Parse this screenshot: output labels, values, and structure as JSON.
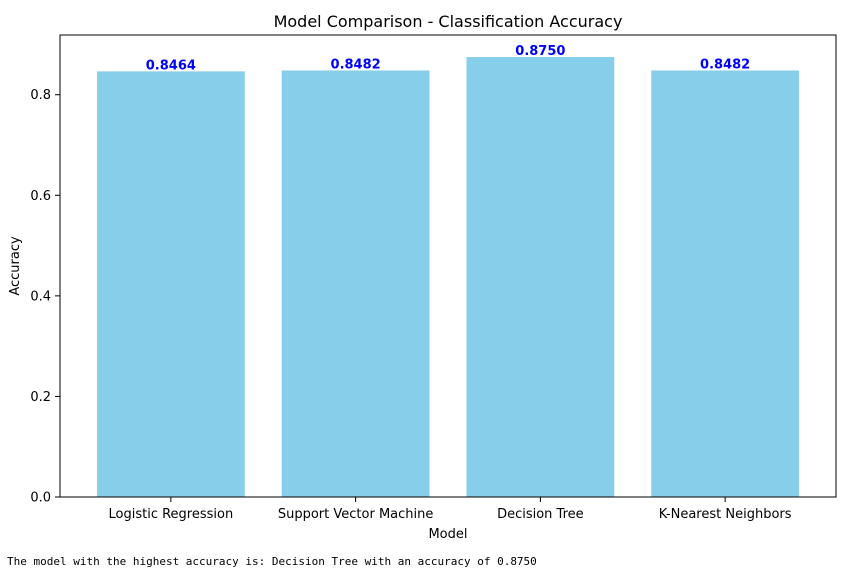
{
  "chart_data": {
    "type": "bar",
    "title": "Model Comparison - Classification Accuracy",
    "xlabel": "Model",
    "ylabel": "Accuracy",
    "categories": [
      "Logistic Regression",
      "Support Vector Machine",
      "Decision Tree",
      "K-Nearest Neighbors"
    ],
    "values": [
      0.8464,
      0.8482,
      0.875,
      0.8482
    ],
    "value_labels": [
      "0.8464",
      "0.8482",
      "0.8750",
      "0.8482"
    ],
    "ylim": [
      0,
      0.91875
    ],
    "yticks": [
      0.0,
      0.2,
      0.4,
      0.6,
      0.8
    ],
    "ytick_labels": [
      "0.0",
      "0.2",
      "0.4",
      "0.6",
      "0.8"
    ],
    "grid": false,
    "bar_color": "#87ceeb",
    "value_label_color": "#0000ff"
  },
  "footer": {
    "text": "The model with the highest accuracy is: Decision Tree with an accuracy of 0.8750"
  }
}
